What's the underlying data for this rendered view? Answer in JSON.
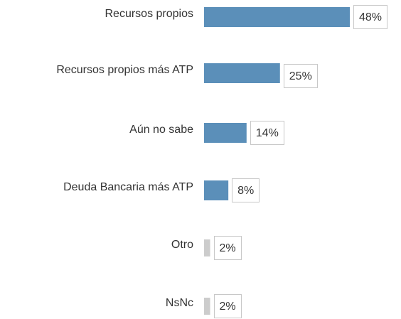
{
  "chart_data": {
    "type": "bar",
    "orientation": "horizontal",
    "categories": [
      "Recursos propios",
      "Recursos propios más ATP",
      "Aún no sabe",
      "Deuda Bancaria más ATP",
      "Otro",
      "NsNc"
    ],
    "values": [
      48,
      25,
      14,
      8,
      2,
      2
    ],
    "value_labels": [
      "48%",
      "25%",
      "14%",
      "8%",
      "2%",
      "2%"
    ],
    "colors": [
      "#5b8fb9",
      "#5b8fb9",
      "#5b8fb9",
      "#5b8fb9",
      "#cccccc",
      "#cccccc"
    ]
  }
}
